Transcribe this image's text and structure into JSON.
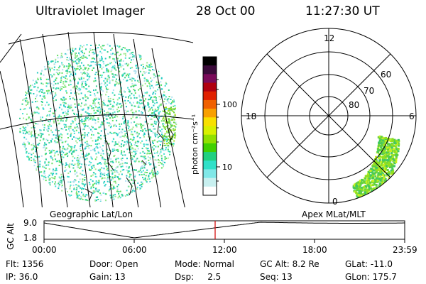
{
  "header": {
    "title": "Ultraviolet Imager",
    "date": "28 Oct 00",
    "time": "11:27:30 UT"
  },
  "colorbar": {
    "unit_label": "photon cm⁻²s⁻¹",
    "ticks": [
      "100",
      "10"
    ],
    "colors": [
      "#000000",
      "#3a0a3a",
      "#7a0a5a",
      "#b00010",
      "#e02000",
      "#f06000",
      "#f8a000",
      "#f8e000",
      "#d8f000",
      "#90e000",
      "#40d000",
      "#20d080",
      "#30e0c8",
      "#80e8e8",
      "#c8f0f0",
      "#ffffff"
    ]
  },
  "left_panel": {
    "caption": "Geographic Lat/Lon",
    "dot_colors": [
      "#40e0d0",
      "#30d090",
      "#60e060",
      "#a0e890",
      "#b0e0f0",
      "#20c8c0"
    ]
  },
  "right_panel": {
    "caption": "Apex MLat/MLT",
    "mlt_labels": {
      "top": "12",
      "left": "18",
      "right": "6",
      "bottom": "0"
    },
    "mlat_labels": [
      "60",
      "70",
      "80"
    ],
    "aurora_colors": [
      "#90e020",
      "#60d040",
      "#c8f020",
      "#40c860"
    ]
  },
  "altitude_plot": {
    "ylabel": "GC Alt",
    "ymax_label": "9.0",
    "ymin_label": "1.8",
    "time_ticks": [
      "00:00",
      "06:00",
      "12:00",
      "18:00",
      "23:59"
    ],
    "current_time_marker_color": "#d00000"
  },
  "info": {
    "row1": {
      "flt": "Flt: 1356",
      "door": "Door: Open",
      "mode": "Mode: Normal",
      "gcalt": "GC Alt: 8.2 Re",
      "glat": "GLat: -11.0"
    },
    "row2": {
      "ip": "IP: 36.0",
      "gain": "Gain: 13",
      "dsp": "Dsp:     2.5",
      "seq": "Seq: 13",
      "glon": "GLon: 175.7"
    }
  }
}
